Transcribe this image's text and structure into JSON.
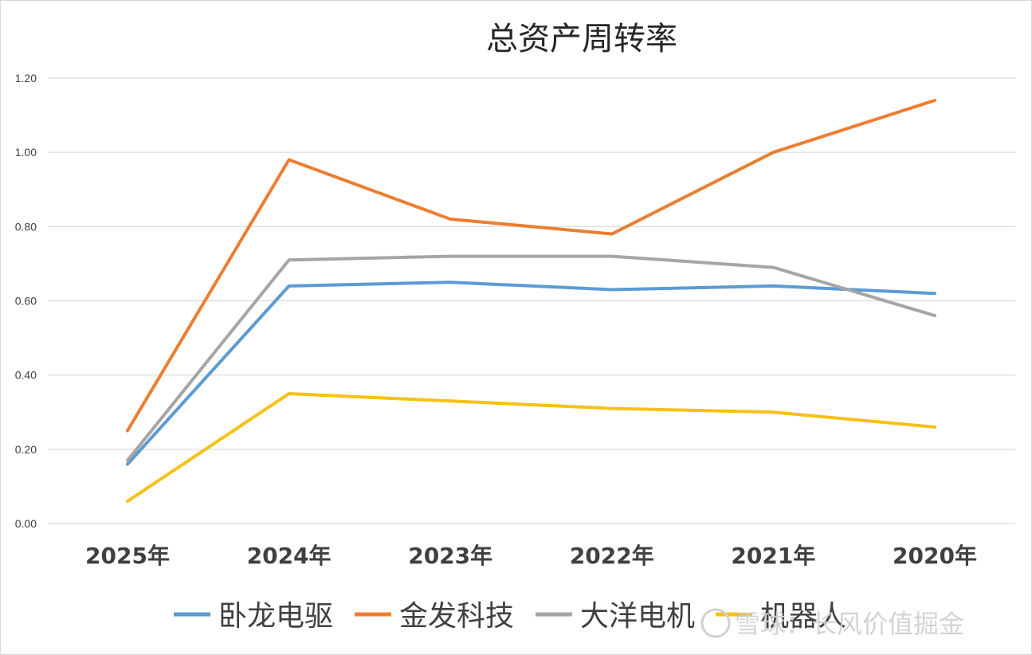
{
  "watermark": "雪球：长风价值掘金",
  "chart_data": {
    "type": "line",
    "title": "总资产周转率",
    "categories": [
      "2025年",
      "2024年",
      "2023年",
      "2022年",
      "2021年",
      "2020年"
    ],
    "ylim": [
      0,
      1.2
    ],
    "yticks": [
      "0.00",
      "0.20",
      "0.40",
      "0.60",
      "0.80",
      "1.00",
      "1.20"
    ],
    "grid": true,
    "legend_position": "bottom",
    "series": [
      {
        "name": "卧龙电驱",
        "color": "#5b9bd5",
        "values": [
          0.16,
          0.64,
          0.65,
          0.63,
          0.64,
          0.62
        ]
      },
      {
        "name": "金发科技",
        "color": "#ed7d31",
        "values": [
          0.25,
          0.98,
          0.82,
          0.78,
          1.0,
          1.14
        ]
      },
      {
        "name": "大洋电机",
        "color": "#a5a5a5",
        "values": [
          0.17,
          0.71,
          0.72,
          0.72,
          0.69,
          0.56
        ]
      },
      {
        "name": "机器人",
        "color": "#f5c116",
        "values": [
          0.06,
          0.35,
          0.33,
          0.31,
          0.3,
          0.26
        ]
      }
    ]
  }
}
